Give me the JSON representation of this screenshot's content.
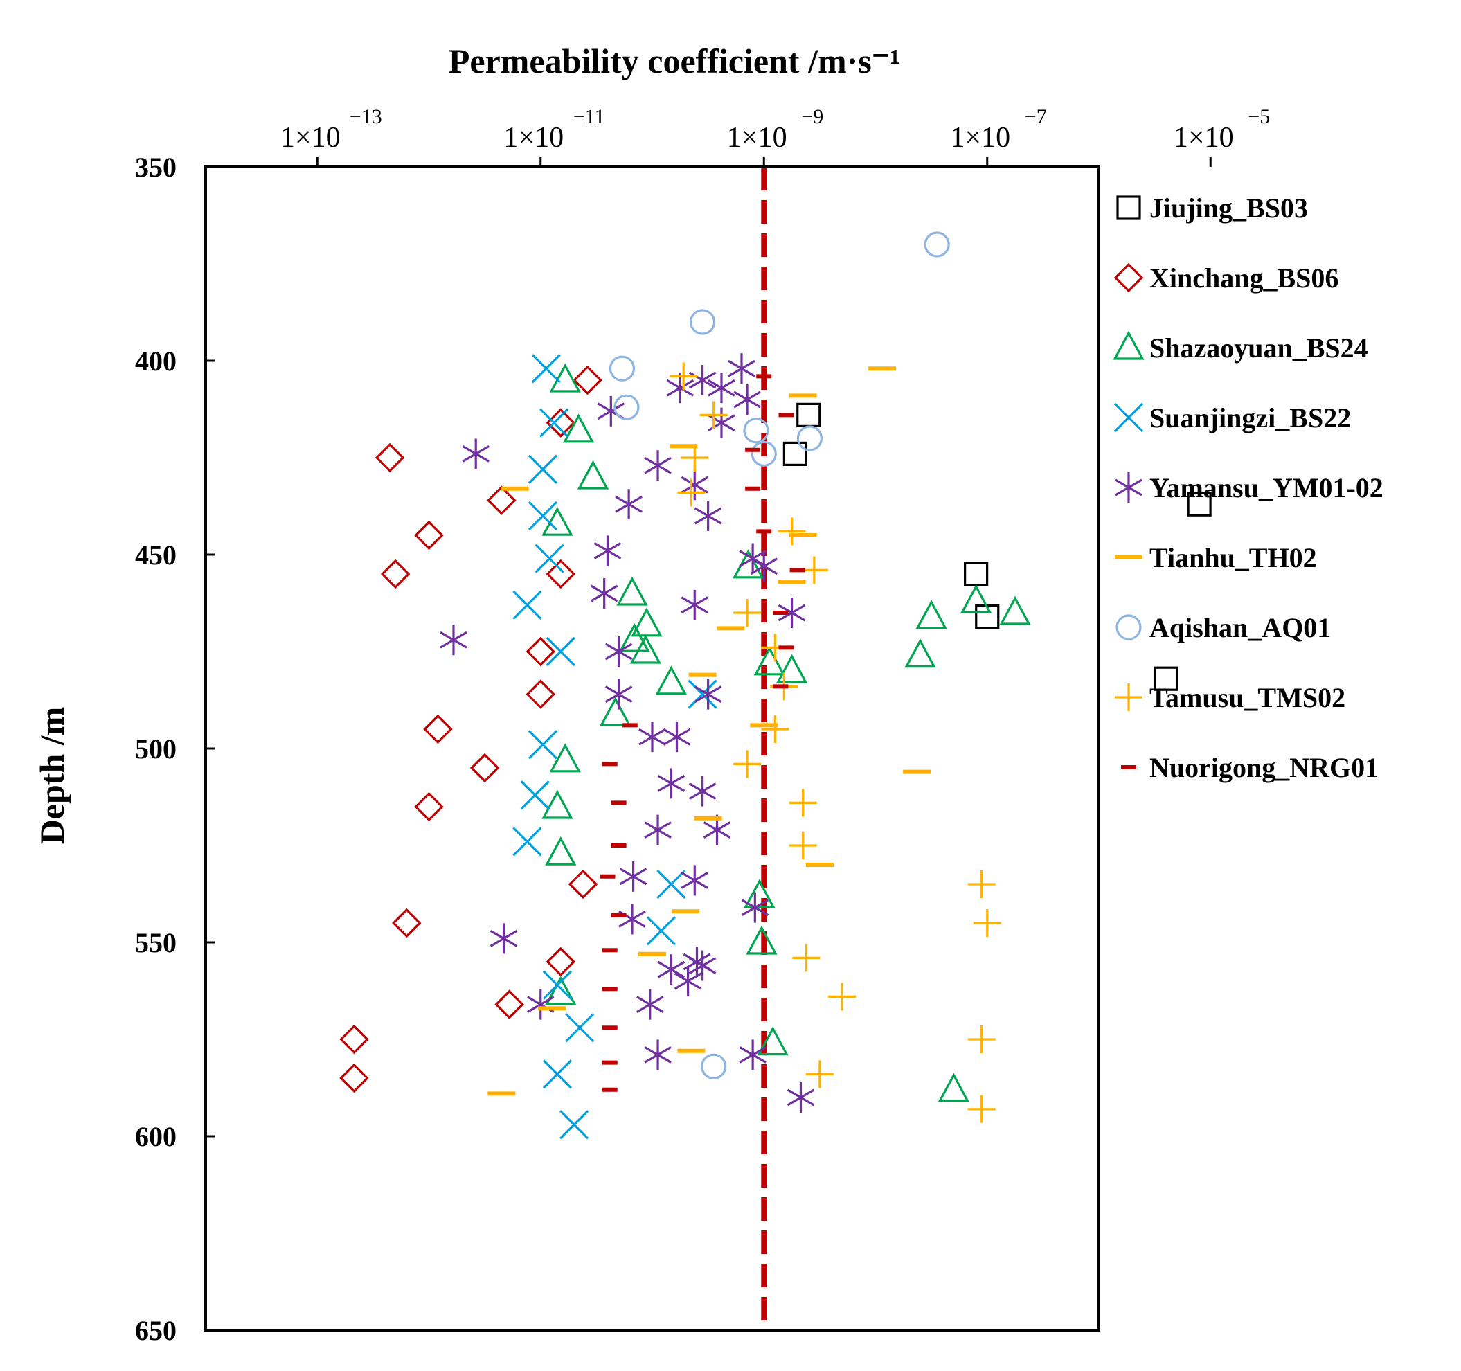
{
  "chart_data": {
    "type": "scatter",
    "x_axis_title": "Permeability coefficient /m·s⁻¹",
    "y_axis_title": "Depth /m",
    "x_scale": "log10",
    "xlim_log10": [
      -14,
      -6
    ],
    "ylim": [
      350,
      650
    ],
    "y_inverted": true,
    "x_ticks": [
      {
        "value": -13,
        "base": "1×10",
        "exp": "−13"
      },
      {
        "value": -11,
        "base": "1×10",
        "exp": "−11"
      },
      {
        "value": -9,
        "base": "1×10",
        "exp": "−9"
      },
      {
        "value": -7,
        "base": "1×10",
        "exp": "−7"
      },
      {
        "value": -5,
        "base": "1×10",
        "exp": "−5"
      }
    ],
    "y_ticks": [
      "350",
      "400",
      "450",
      "500",
      "550",
      "600",
      "650"
    ],
    "reference_line": {
      "log10_k": -9,
      "color": "#c00000"
    },
    "legend_position": "right",
    "series": [
      {
        "name": "Jiujing_BS03",
        "marker": "square",
        "color": "#000000",
        "points": [
          [
            -8.6,
            414
          ],
          [
            -8.72,
            424
          ],
          [
            -5.1,
            437
          ],
          [
            -7.1,
            455
          ],
          [
            -7.0,
            466
          ],
          [
            -5.4,
            482
          ]
        ]
      },
      {
        "name": "Xinchang_BS06",
        "marker": "diamond",
        "color": "#c00000",
        "points": [
          [
            -10.58,
            405
          ],
          [
            -10.82,
            416
          ],
          [
            -12.35,
            425
          ],
          [
            -11.35,
            436
          ],
          [
            -12.0,
            445
          ],
          [
            -12.3,
            455
          ],
          [
            -10.82,
            455
          ],
          [
            -11.0,
            475
          ],
          [
            -11.0,
            486
          ],
          [
            -11.92,
            495
          ],
          [
            -11.5,
            505
          ],
          [
            -12.0,
            515
          ],
          [
            -10.62,
            535
          ],
          [
            -12.2,
            545
          ],
          [
            -10.82,
            555
          ],
          [
            -11.28,
            566
          ],
          [
            -12.67,
            575
          ],
          [
            -12.67,
            585
          ]
        ]
      },
      {
        "name": "Shazaoyuan_BS24",
        "marker": "triangle",
        "color": "#00a550",
        "points": [
          [
            -10.78,
            405
          ],
          [
            -10.66,
            418
          ],
          [
            -10.53,
            430
          ],
          [
            -10.85,
            442
          ],
          [
            -9.14,
            453
          ],
          [
            -10.18,
            460
          ],
          [
            -10.05,
            468
          ],
          [
            -10.16,
            472
          ],
          [
            -10.06,
            475
          ],
          [
            -9.83,
            483
          ],
          [
            -8.95,
            478
          ],
          [
            -8.75,
            480
          ],
          [
            -7.6,
            476
          ],
          [
            -7.5,
            466
          ],
          [
            -7.1,
            462
          ],
          [
            -6.75,
            465
          ],
          [
            -10.78,
            503
          ],
          [
            -10.85,
            515
          ],
          [
            -10.82,
            527
          ],
          [
            -10.33,
            491
          ],
          [
            -9.04,
            538
          ],
          [
            -9.02,
            550
          ],
          [
            -10.82,
            563
          ],
          [
            -8.92,
            576
          ],
          [
            -7.3,
            588
          ]
        ]
      },
      {
        "name": "Suanjingzi_BS22",
        "marker": "x",
        "color": "#00a0e0",
        "points": [
          [
            -10.95,
            402
          ],
          [
            -10.88,
            416
          ],
          [
            -10.98,
            428
          ],
          [
            -10.98,
            440
          ],
          [
            -10.92,
            451
          ],
          [
            -11.12,
            463
          ],
          [
            -10.82,
            475
          ],
          [
            -10.98,
            499
          ],
          [
            -11.05,
            512
          ],
          [
            -11.12,
            524
          ],
          [
            -9.83,
            535
          ],
          [
            -9.92,
            547
          ],
          [
            -9.55,
            486
          ],
          [
            -10.85,
            561
          ],
          [
            -10.65,
            572
          ],
          [
            -10.85,
            584
          ],
          [
            -10.7,
            597
          ]
        ]
      },
      {
        "name": "Yamansu_YM01-02",
        "marker": "asterisk",
        "color": "#7030a0",
        "points": [
          [
            -9.2,
            402
          ],
          [
            -9.55,
            405
          ],
          [
            -9.38,
            407
          ],
          [
            -9.15,
            410
          ],
          [
            -10.37,
            413
          ],
          [
            -9.75,
            407
          ],
          [
            -9.38,
            416
          ],
          [
            -11.58,
            424
          ],
          [
            -9.95,
            427
          ],
          [
            -9.62,
            432
          ],
          [
            -10.21,
            437
          ],
          [
            -9.5,
            440
          ],
          [
            -10.4,
            449
          ],
          [
            -9.1,
            451
          ],
          [
            -9.0,
            453
          ],
          [
            -10.43,
            460
          ],
          [
            -8.75,
            465
          ],
          [
            -9.62,
            463
          ],
          [
            -11.78,
            472
          ],
          [
            -10.3,
            475
          ],
          [
            -10.3,
            486
          ],
          [
            -9.5,
            486
          ],
          [
            -10.0,
            497
          ],
          [
            -9.78,
            497
          ],
          [
            -9.83,
            509
          ],
          [
            -9.55,
            511
          ],
          [
            -9.95,
            521
          ],
          [
            -9.42,
            521
          ],
          [
            -10.17,
            533
          ],
          [
            -9.62,
            534
          ],
          [
            -10.18,
            544
          ],
          [
            -9.08,
            541
          ],
          [
            -11.33,
            549
          ],
          [
            -9.6,
            555
          ],
          [
            -9.55,
            556
          ],
          [
            -9.83,
            557
          ],
          [
            -9.68,
            560
          ],
          [
            -11.0,
            566
          ],
          [
            -10.02,
            566
          ],
          [
            -9.95,
            579
          ],
          [
            -9.1,
            579
          ],
          [
            -8.67,
            590
          ]
        ]
      },
      {
        "name": "Tianhu_TH02",
        "marker": "dash",
        "color": "#ffb000",
        "points": [
          [
            -7.94,
            402
          ],
          [
            -8.65,
            409
          ],
          [
            -11.23,
            433
          ],
          [
            -8.65,
            445
          ],
          [
            -8.75,
            457
          ],
          [
            -9.72,
            422
          ],
          [
            -9.3,
            469
          ],
          [
            -9.55,
            481
          ],
          [
            -9.0,
            494
          ],
          [
            -7.63,
            506
          ],
          [
            -9.5,
            518
          ],
          [
            -8.5,
            530
          ],
          [
            -9.7,
            542
          ],
          [
            -10.0,
            553
          ],
          [
            -10.9,
            567
          ],
          [
            -9.65,
            578
          ],
          [
            -11.35,
            589
          ]
        ]
      },
      {
        "name": "Aqishan_AQ01",
        "marker": "circle",
        "color": "#8eb4e3",
        "points": [
          [
            -7.45,
            370
          ],
          [
            -9.55,
            390
          ],
          [
            -10.27,
            402
          ],
          [
            -10.23,
            412
          ],
          [
            -9.07,
            418
          ],
          [
            -8.59,
            420
          ],
          [
            -9.0,
            424
          ],
          [
            -9.45,
            582
          ]
        ]
      },
      {
        "name": "Tamusu_TMS02",
        "marker": "plus",
        "color": "#ffb000",
        "points": [
          [
            -9.72,
            404
          ],
          [
            -9.45,
            414
          ],
          [
            -9.62,
            425
          ],
          [
            -9.65,
            434
          ],
          [
            -8.75,
            444
          ],
          [
            -8.55,
            454
          ],
          [
            -9.15,
            465
          ],
          [
            -8.9,
            474
          ],
          [
            -8.82,
            484
          ],
          [
            -8.9,
            495
          ],
          [
            -9.15,
            504
          ],
          [
            -8.65,
            514
          ],
          [
            -8.65,
            525
          ],
          [
            -7.05,
            535
          ],
          [
            -7.0,
            545
          ],
          [
            -8.62,
            554
          ],
          [
            -8.3,
            564
          ],
          [
            -7.05,
            575
          ],
          [
            -8.5,
            584
          ],
          [
            -7.05,
            593
          ]
        ]
      },
      {
        "name": "Nuorigong_NRG01",
        "marker": "smalldash",
        "color": "#c00000",
        "points": [
          [
            -9.0,
            404
          ],
          [
            -8.8,
            414
          ],
          [
            -9.1,
            423
          ],
          [
            -9.1,
            433
          ],
          [
            -9.0,
            444
          ],
          [
            -8.7,
            454
          ],
          [
            -8.85,
            465
          ],
          [
            -8.8,
            474
          ],
          [
            -8.85,
            484
          ],
          [
            -10.2,
            494
          ],
          [
            -10.38,
            504
          ],
          [
            -10.3,
            514
          ],
          [
            -10.3,
            525
          ],
          [
            -10.4,
            533
          ],
          [
            -10.3,
            543
          ],
          [
            -10.38,
            552
          ],
          [
            -10.38,
            562
          ],
          [
            -10.38,
            572
          ],
          [
            -10.38,
            581
          ],
          [
            -10.38,
            588
          ]
        ]
      }
    ]
  }
}
